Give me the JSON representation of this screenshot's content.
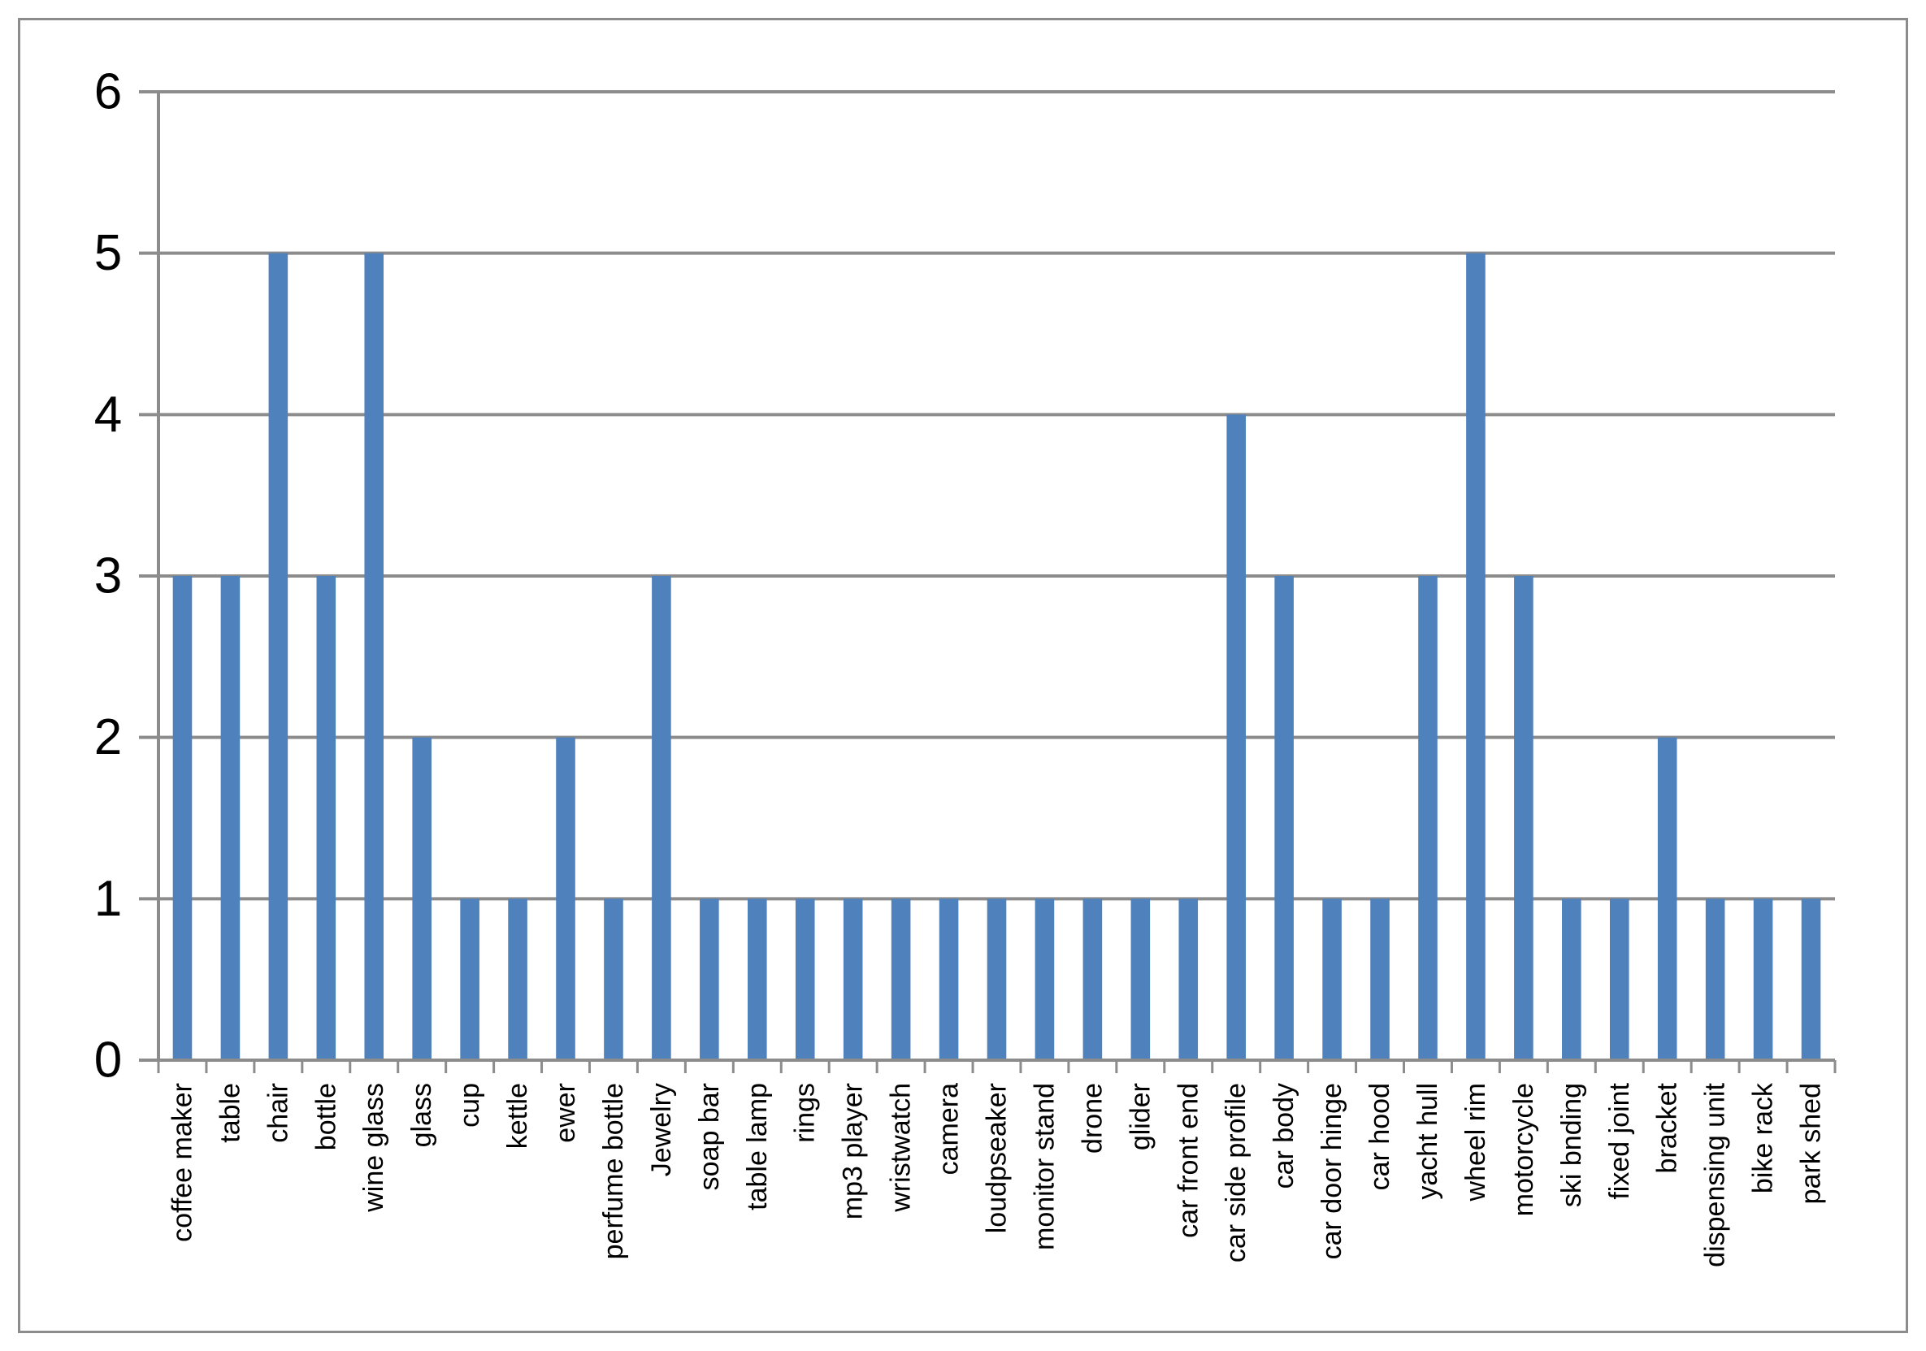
{
  "chart_data": {
    "type": "bar",
    "categories": [
      "coffee maker",
      "table",
      "chair",
      "bottle",
      "wine glass",
      "glass",
      "cup",
      "kettle",
      "ewer",
      "perfume bottle",
      "Jewelry",
      "soap bar",
      "table lamp",
      "rings",
      "mp3 player",
      "wristwatch",
      "camera",
      "loudpseaker",
      "monitor stand",
      "drone",
      "glider",
      "car front end",
      "car side profile",
      "car body",
      "car door hinge",
      "car hood",
      "yacht hull",
      "wheel rim",
      "motorcycle",
      "ski bnding",
      "fixed joint",
      "bracket",
      "dispensing unit",
      "bike rack",
      "park shed"
    ],
    "values": [
      3,
      3,
      5,
      3,
      5,
      2,
      1,
      1,
      2,
      1,
      3,
      1,
      1,
      1,
      1,
      1,
      1,
      1,
      1,
      1,
      1,
      1,
      4,
      3,
      1,
      1,
      3,
      5,
      3,
      1,
      1,
      2,
      1,
      1,
      1
    ],
    "title": "",
    "xlabel": "",
    "ylabel": "",
    "ylim": [
      0,
      6
    ],
    "yticks": [
      "0",
      "1",
      "2",
      "3",
      "4",
      "5",
      "6"
    ],
    "grid": true,
    "legend": "none",
    "bar_color": "#4f81bd",
    "grid_color": "#8c8c8c"
  }
}
